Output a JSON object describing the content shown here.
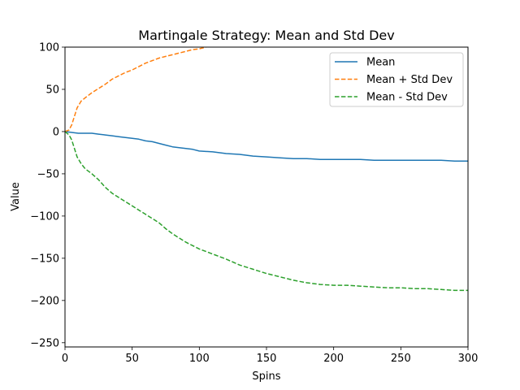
{
  "chart_data": {
    "type": "line",
    "title": "Martingale Strategy: Mean and Std Dev",
    "xlabel": "Spins",
    "ylabel": "Value",
    "xlim": [
      0,
      300
    ],
    "ylim": [
      -255,
      100
    ],
    "xticks": [
      0,
      50,
      100,
      150,
      200,
      250,
      300
    ],
    "yticks": [
      100,
      50,
      0,
      -50,
      -100,
      -150,
      -200,
      -250
    ],
    "xtick_labels": [
      "0",
      "50",
      "100",
      "150",
      "200",
      "250",
      "300"
    ],
    "ytick_labels": [
      "100",
      "50",
      "0",
      "−50",
      "−100",
      "−150",
      "−200",
      "−250"
    ],
    "grid": false,
    "legend_position": "top-right",
    "series": [
      {
        "name": "Mean",
        "color": "#1f77b4",
        "dash": "solid",
        "x": [
          0,
          5,
          10,
          15,
          20,
          25,
          30,
          35,
          40,
          45,
          50,
          55,
          60,
          65,
          70,
          75,
          80,
          85,
          90,
          95,
          100,
          110,
          120,
          130,
          140,
          150,
          160,
          170,
          180,
          190,
          200,
          210,
          220,
          230,
          240,
          250,
          260,
          270,
          280,
          290,
          300
        ],
        "y": [
          0,
          -1,
          -2,
          -2,
          -2,
          -3,
          -4,
          -5,
          -6,
          -7,
          -8,
          -9,
          -11,
          -12,
          -14,
          -16,
          -18,
          -19,
          -20,
          -21,
          -23,
          -24,
          -26,
          -27,
          -29,
          -30,
          -31,
          -32,
          -32,
          -33,
          -33,
          -33,
          -33,
          -34,
          -34,
          -34,
          -34,
          -34,
          -34,
          -35,
          -35
        ]
      },
      {
        "name": "Mean + Std Dev",
        "color": "#ff7f0e",
        "dash": "dashed",
        "x": [
          0,
          3,
          5,
          7,
          9,
          12,
          15,
          20,
          25,
          30,
          35,
          40,
          45,
          50,
          55,
          60,
          65,
          70,
          75,
          80,
          85,
          90,
          95,
          100,
          105
        ],
        "y": [
          0,
          2,
          8,
          18,
          28,
          36,
          40,
          46,
          51,
          56,
          62,
          66,
          70,
          73,
          77,
          81,
          84,
          87,
          89,
          91,
          93,
          95,
          97,
          98,
          100
        ]
      },
      {
        "name": "Mean - Std Dev",
        "color": "#2ca02c",
        "dash": "dashed",
        "x": [
          0,
          3,
          5,
          7,
          9,
          12,
          15,
          20,
          25,
          30,
          35,
          40,
          45,
          50,
          55,
          60,
          65,
          70,
          75,
          80,
          85,
          90,
          95,
          100,
          110,
          120,
          130,
          140,
          150,
          160,
          170,
          180,
          190,
          200,
          210,
          220,
          230,
          240,
          250,
          260,
          270,
          280,
          290,
          300
        ],
        "y": [
          0,
          -4,
          -10,
          -20,
          -30,
          -38,
          -44,
          -50,
          -57,
          -66,
          -73,
          -78,
          -83,
          -88,
          -93,
          -98,
          -103,
          -108,
          -115,
          -121,
          -126,
          -131,
          -135,
          -139,
          -145,
          -151,
          -158,
          -163,
          -168,
          -172,
          -176,
          -179,
          -181,
          -182,
          -182,
          -183,
          -184,
          -185,
          -185,
          -186,
          -186,
          -187,
          -188,
          -188
        ]
      }
    ]
  }
}
